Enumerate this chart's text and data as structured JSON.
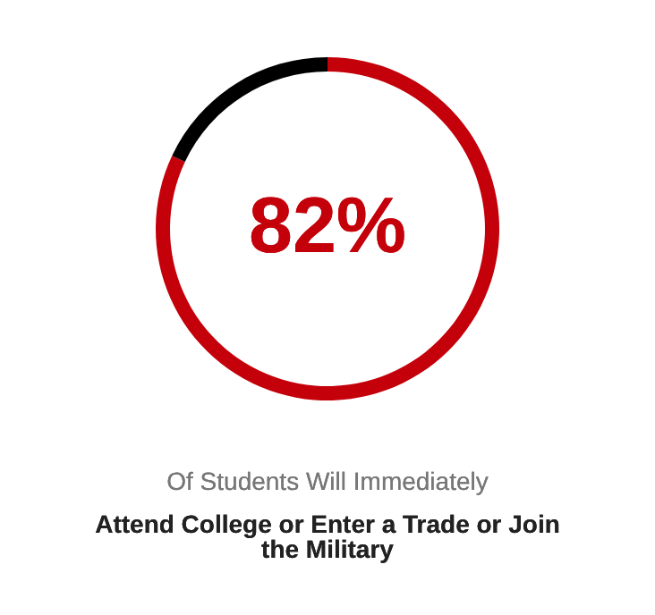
{
  "chart_data": {
    "type": "donut",
    "categories": [
      null,
      null
    ],
    "values": [
      82,
      18
    ],
    "colors": [
      "#c4000a",
      "#000000"
    ],
    "value_labels": [
      "82%",
      null
    ],
    "annotations": [
      "Of Students Will Immediately",
      "Attend College or Enter a Trade or Join the Military"
    ]
  }
}
